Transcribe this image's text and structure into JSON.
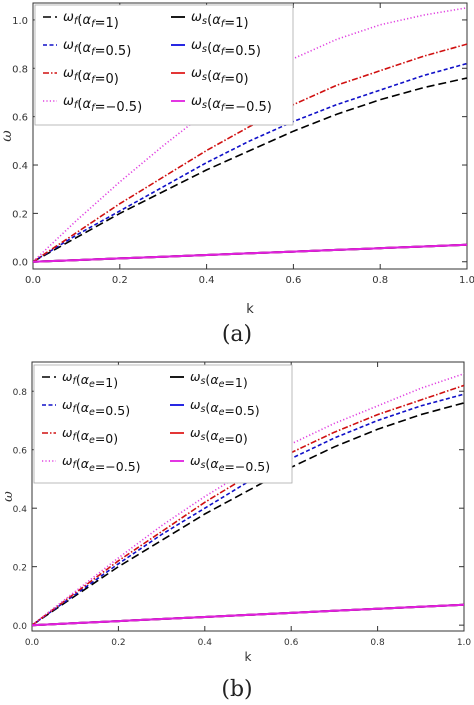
{
  "chart_data": [
    {
      "type": "line",
      "caption": "(a)",
      "xlabel": "k",
      "ylabel": "ω",
      "xlim": [
        0,
        1
      ],
      "ylim": [
        -0.03,
        1.07
      ],
      "xticks": [
        "0.0",
        "0.2",
        "0.4",
        "0.6",
        "0.8",
        "1.0"
      ],
      "yticks": [
        "0.0",
        "0.2",
        "0.4",
        "0.6",
        "0.8",
        "1.0"
      ],
      "xtick_values": [
        0,
        0.2,
        0.4,
        0.6,
        0.8,
        1.0
      ],
      "ytick_values": [
        0,
        0.2,
        0.4,
        0.6,
        0.8,
        1.0
      ],
      "legend_position": "top-left",
      "x": [
        0,
        0.1,
        0.2,
        0.3,
        0.4,
        0.5,
        0.6,
        0.7,
        0.8,
        0.9,
        1.0
      ],
      "series": [
        {
          "name": "ω_f(α_f=1)",
          "style": "dashed",
          "color": "#000000",
          "y": [
            0,
            0.1,
            0.2,
            0.29,
            0.38,
            0.46,
            0.54,
            0.61,
            0.67,
            0.72,
            0.76
          ]
        },
        {
          "name": "ω_f(α_f=0.5)",
          "style": "dashed-fine",
          "color": "#1010c8",
          "y": [
            0,
            0.11,
            0.21,
            0.31,
            0.41,
            0.5,
            0.58,
            0.65,
            0.71,
            0.77,
            0.82
          ]
        },
        {
          "name": "ω_f(α_f=0)",
          "style": "dashdot",
          "color": "#d01010",
          "y": [
            0,
            0.12,
            0.24,
            0.35,
            0.46,
            0.56,
            0.65,
            0.73,
            0.79,
            0.85,
            0.9
          ]
        },
        {
          "name": "ω_f(α_f=−0.5)",
          "style": "dotted",
          "color": "#e040e0",
          "y": [
            0,
            0.17,
            0.33,
            0.48,
            0.62,
            0.74,
            0.84,
            0.92,
            0.98,
            1.02,
            1.05
          ]
        },
        {
          "name": "ω_s(α_f=1)",
          "style": "solid",
          "color": "#000000",
          "y": [
            0,
            0.007,
            0.014,
            0.021,
            0.028,
            0.035,
            0.042,
            0.049,
            0.056,
            0.063,
            0.07
          ]
        },
        {
          "name": "ω_s(α_f=0.5)",
          "style": "solid",
          "color": "#1010e0",
          "y": [
            0,
            0.007,
            0.014,
            0.021,
            0.028,
            0.035,
            0.042,
            0.049,
            0.056,
            0.063,
            0.07
          ]
        },
        {
          "name": "ω_s(α_f=0)",
          "style": "solid",
          "color": "#e02020",
          "y": [
            0,
            0.007,
            0.014,
            0.021,
            0.028,
            0.035,
            0.042,
            0.049,
            0.056,
            0.063,
            0.07
          ]
        },
        {
          "name": "ω_s(α_f=−0.5)",
          "style": "solid",
          "color": "#e020e0",
          "y": [
            0,
            0.007,
            0.014,
            0.021,
            0.028,
            0.035,
            0.042,
            0.049,
            0.056,
            0.063,
            0.07
          ]
        }
      ],
      "legend": [
        {
          "sym": "ω",
          "sub": "f",
          "cond": "α",
          "csub": "f",
          "val": "=1"
        },
        {
          "sym": "ω",
          "sub": "s",
          "cond": "α",
          "csub": "f",
          "val": "=1"
        },
        {
          "sym": "ω",
          "sub": "f",
          "cond": "α",
          "csub": "f",
          "val": "=0.5"
        },
        {
          "sym": "ω",
          "sub": "s",
          "cond": "α",
          "csub": "f",
          "val": "=0.5"
        },
        {
          "sym": "ω",
          "sub": "f",
          "cond": "α",
          "csub": "f",
          "val": "=0"
        },
        {
          "sym": "ω",
          "sub": "s",
          "cond": "α",
          "csub": "f",
          "val": "=0"
        },
        {
          "sym": "ω",
          "sub": "f",
          "cond": "α",
          "csub": "f",
          "val": "=−0.5"
        },
        {
          "sym": "ω",
          "sub": "s",
          "cond": "α",
          "csub": "f",
          "val": "=−0.5"
        }
      ]
    },
    {
      "type": "line",
      "caption": "(b)",
      "xlabel": "k",
      "ylabel": "ω",
      "xlim": [
        0,
        1
      ],
      "ylim": [
        -0.02,
        0.9
      ],
      "xticks": [
        "0.0",
        "0.2",
        "0.4",
        "0.6",
        "0.8",
        "1.0"
      ],
      "yticks": [
        "0.0",
        "0.2",
        "0.4",
        "0.6",
        "0.8"
      ],
      "xtick_values": [
        0,
        0.2,
        0.4,
        0.6,
        0.8,
        1.0
      ],
      "ytick_values": [
        0,
        0.2,
        0.4,
        0.6,
        0.8
      ],
      "legend_position": "top-left",
      "x": [
        0,
        0.1,
        0.2,
        0.3,
        0.4,
        0.5,
        0.6,
        0.7,
        0.8,
        0.9,
        1.0
      ],
      "series": [
        {
          "name": "ω_f(α_e=1)",
          "style": "dashed",
          "color": "#000000",
          "y": [
            0,
            0.1,
            0.2,
            0.29,
            0.38,
            0.46,
            0.54,
            0.61,
            0.67,
            0.72,
            0.76
          ]
        },
        {
          "name": "ω_f(α_e=0.5)",
          "style": "dashed-fine",
          "color": "#1010c8",
          "y": [
            0,
            0.105,
            0.21,
            0.31,
            0.4,
            0.49,
            0.57,
            0.64,
            0.7,
            0.75,
            0.79
          ]
        },
        {
          "name": "ω_f(α_e=0)",
          "style": "dashdot",
          "color": "#d01010",
          "y": [
            0,
            0.11,
            0.22,
            0.32,
            0.42,
            0.51,
            0.59,
            0.66,
            0.72,
            0.77,
            0.82
          ]
        },
        {
          "name": "ω_f(α_e=−0.5)",
          "style": "dotted",
          "color": "#e040e0",
          "y": [
            0,
            0.115,
            0.23,
            0.34,
            0.44,
            0.53,
            0.62,
            0.69,
            0.75,
            0.81,
            0.86
          ]
        },
        {
          "name": "ω_s(α_e=1)",
          "style": "solid",
          "color": "#000000",
          "y": [
            0,
            0.007,
            0.014,
            0.021,
            0.028,
            0.035,
            0.042,
            0.049,
            0.056,
            0.063,
            0.07
          ]
        },
        {
          "name": "ω_s(α_e=0.5)",
          "style": "solid",
          "color": "#1010e0",
          "y": [
            0,
            0.007,
            0.014,
            0.021,
            0.028,
            0.035,
            0.042,
            0.049,
            0.056,
            0.063,
            0.07
          ]
        },
        {
          "name": "ω_s(α_e=0)",
          "style": "solid",
          "color": "#e02020",
          "y": [
            0,
            0.007,
            0.014,
            0.021,
            0.028,
            0.035,
            0.042,
            0.049,
            0.056,
            0.063,
            0.07
          ]
        },
        {
          "name": "ω_s(α_e=−0.5)",
          "style": "solid",
          "color": "#e020e0",
          "y": [
            0,
            0.007,
            0.014,
            0.021,
            0.028,
            0.035,
            0.042,
            0.049,
            0.056,
            0.063,
            0.07
          ]
        }
      ],
      "legend": [
        {
          "sym": "ω",
          "sub": "f",
          "cond": "α",
          "csub": "e",
          "val": "=1"
        },
        {
          "sym": "ω",
          "sub": "s",
          "cond": "α",
          "csub": "e",
          "val": "=1"
        },
        {
          "sym": "ω",
          "sub": "f",
          "cond": "α",
          "csub": "e",
          "val": "=0.5"
        },
        {
          "sym": "ω",
          "sub": "s",
          "cond": "α",
          "csub": "e",
          "val": "=0.5"
        },
        {
          "sym": "ω",
          "sub": "f",
          "cond": "α",
          "csub": "e",
          "val": "=0"
        },
        {
          "sym": "ω",
          "sub": "s",
          "cond": "α",
          "csub": "e",
          "val": "=0"
        },
        {
          "sym": "ω",
          "sub": "f",
          "cond": "α",
          "csub": "e",
          "val": "=−0.5"
        },
        {
          "sym": "ω",
          "sub": "s",
          "cond": "α",
          "csub": "e",
          "val": "=−0.5"
        }
      ]
    }
  ]
}
